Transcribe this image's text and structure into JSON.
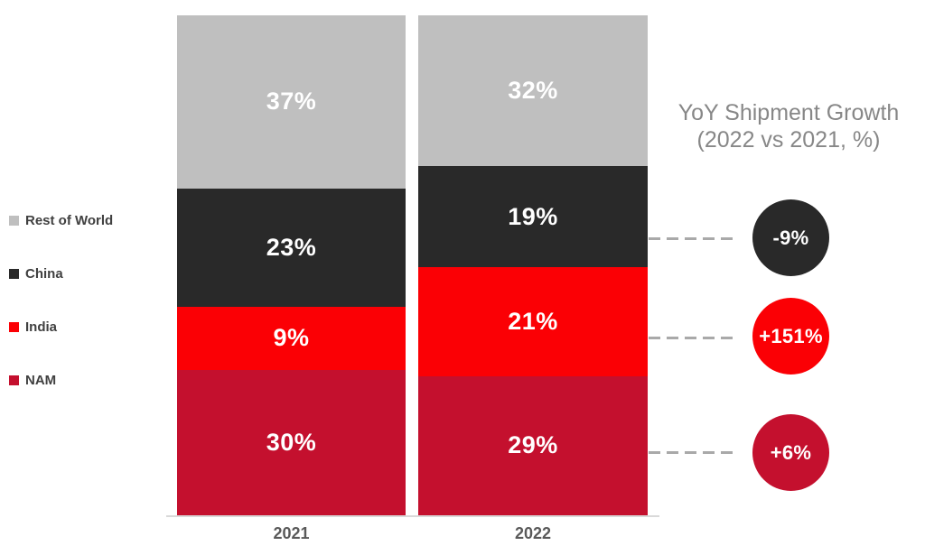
{
  "chart_data": {
    "type": "bar",
    "stacked": true,
    "categories": [
      "2021",
      "2022"
    ],
    "series": [
      {
        "name": "Rest of World",
        "color": "#bfbfbf",
        "values": [
          37,
          32
        ]
      },
      {
        "name": "China",
        "color": "#292929",
        "values": [
          23,
          19
        ]
      },
      {
        "name": "India",
        "color": "#fb0005",
        "values": [
          9,
          21
        ]
      },
      {
        "name": "NAM",
        "color": "#c4102e",
        "values": [
          30,
          29
        ]
      }
    ],
    "value_suffix": "%",
    "legend_position": "left",
    "grid": false,
    "annotations": {
      "title_line1": "YoY Shipment Growth",
      "title_line2": "(2022 vs 2021, %)",
      "badges": [
        {
          "label": "-9%",
          "series": "China",
          "color": "#292929"
        },
        {
          "label": "+151%",
          "series": "India",
          "color": "#fb0005"
        },
        {
          "label": "+6%",
          "series": "NAM",
          "color": "#c4102e"
        }
      ]
    }
  },
  "colors": {
    "axis_line": "#d9d9d9",
    "dashed_connector": "#a9a9a9",
    "category_label": "#595959",
    "legend_text": "#404040",
    "annotation_title": "#878787",
    "segment_label": "#ffffff"
  }
}
